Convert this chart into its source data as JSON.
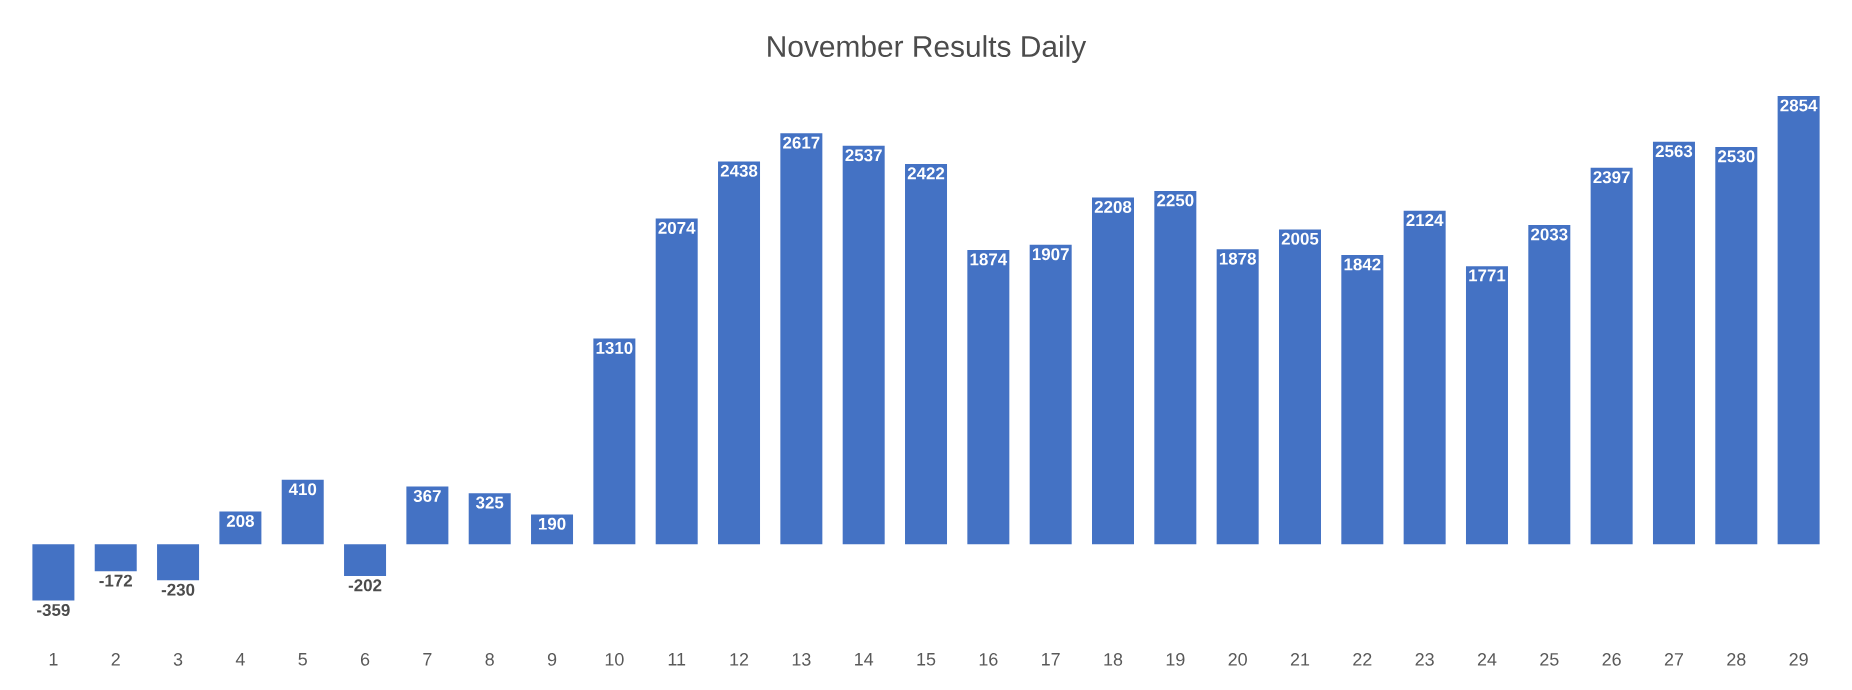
{
  "chart_data": {
    "type": "bar",
    "title": "November Results Daily",
    "categories": [
      "1",
      "2",
      "3",
      "4",
      "5",
      "6",
      "7",
      "8",
      "9",
      "10",
      "11",
      "12",
      "13",
      "14",
      "15",
      "16",
      "17",
      "18",
      "19",
      "20",
      "21",
      "22",
      "23",
      "24",
      "25",
      "26",
      "27",
      "28",
      "29"
    ],
    "values": [
      -359,
      -172,
      -230,
      208,
      410,
      -202,
      367,
      325,
      190,
      1310,
      2074,
      2438,
      2617,
      2537,
      2422,
      1874,
      1907,
      2208,
      2250,
      1878,
      2005,
      1842,
      2124,
      1771,
      2033,
      2397,
      2563,
      2530,
      2854
    ],
    "color": "#4472c4",
    "data_labels": true
  }
}
